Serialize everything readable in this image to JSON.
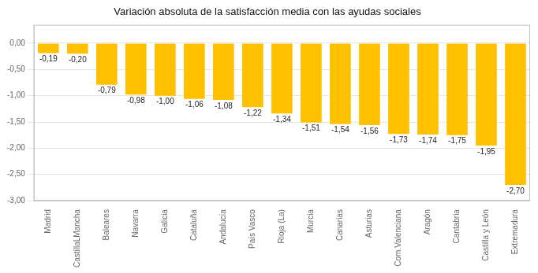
{
  "chart_data": {
    "type": "bar",
    "title": "Variación absoluta de la satisfacción media con las ayudas sociales",
    "categories": [
      "Madrid",
      "CastillaLMancha",
      "Baleares",
      "Navarra",
      "Galicia",
      "Cataluña",
      "Andalucía",
      "País Vasco",
      "Rioja (La)",
      "Murcia",
      "Canarias",
      "Asturias",
      "Com.Valenciana",
      "Aragón",
      "Cantabria",
      "Castilla y León",
      "Extremadura"
    ],
    "values": [
      -0.19,
      -0.2,
      -0.79,
      -0.98,
      -1.0,
      -1.06,
      -1.08,
      -1.22,
      -1.34,
      -1.51,
      -1.54,
      -1.56,
      -1.73,
      -1.74,
      -1.75,
      -1.95,
      -2.7
    ],
    "value_labels": [
      "-0,19",
      "-0,20",
      "-0,79",
      "-0,98",
      "-1,00",
      "-1,06",
      "-1,08",
      "-1,22",
      "-1,34",
      "-1,51",
      "-1,54",
      "-1,56",
      "-1,73",
      "-1,74",
      "-1,75",
      "-1,95",
      "-2,70"
    ],
    "data_labels": true,
    "color": "#FFC000",
    "ylim": [
      -3.0,
      0.35
    ],
    "yticks": [
      {
        "value": 0.0,
        "label": "0,00"
      },
      {
        "value": -0.5,
        "label": "-0,50"
      },
      {
        "value": -1.0,
        "label": "-1,00"
      },
      {
        "value": -1.5,
        "label": "-1,50"
      },
      {
        "value": -2.0,
        "label": "-2,00"
      },
      {
        "value": -2.5,
        "label": "-2,50"
      },
      {
        "value": -3.0,
        "label": "-3,00"
      }
    ],
    "grid": true
  }
}
